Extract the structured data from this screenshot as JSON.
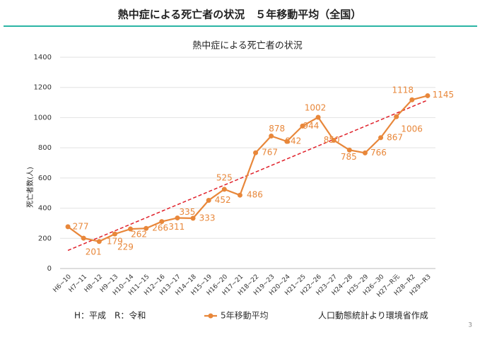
{
  "header": {
    "title": "熱中症による死亡者の状況　５年移動平均（全国）"
  },
  "chart_data": {
    "type": "line",
    "title": "熱中症による死亡者の状況",
    "ylabel": "死亡者数(人)",
    "categories": [
      "H6~10",
      "H7~11",
      "H8~12",
      "H9~13",
      "H10~14",
      "H11~15",
      "H12~16",
      "H13~17",
      "H14~18",
      "H15~19",
      "H16~20",
      "H17~21",
      "H18~22",
      "H19~23",
      "H20~24",
      "H21~25",
      "H22~26",
      "H23~27",
      "H24~28",
      "H25~29",
      "H26~30",
      "H27~R元",
      "H28~R2",
      "H29~R3"
    ],
    "series": [
      {
        "name": "5年移動平均",
        "color": "#e8873a",
        "values": [
          277,
          201,
          179,
          229,
          262,
          266,
          311,
          335,
          333,
          452,
          525,
          486,
          767,
          878,
          842,
          944,
          1002,
          850,
          785,
          766,
          867,
          1006,
          1118,
          1145
        ]
      }
    ],
    "ylim": [
      0,
      1400
    ],
    "yticks": [
      0,
      200,
      400,
      600,
      800,
      1000,
      1200,
      1400
    ],
    "grid": true,
    "trendline": {
      "type": "linear",
      "color": "#e0202a"
    }
  },
  "notes": [
    "H：平成　R：令和",
    "人口動態統計より環境省作成"
  ],
  "page_number": "3"
}
